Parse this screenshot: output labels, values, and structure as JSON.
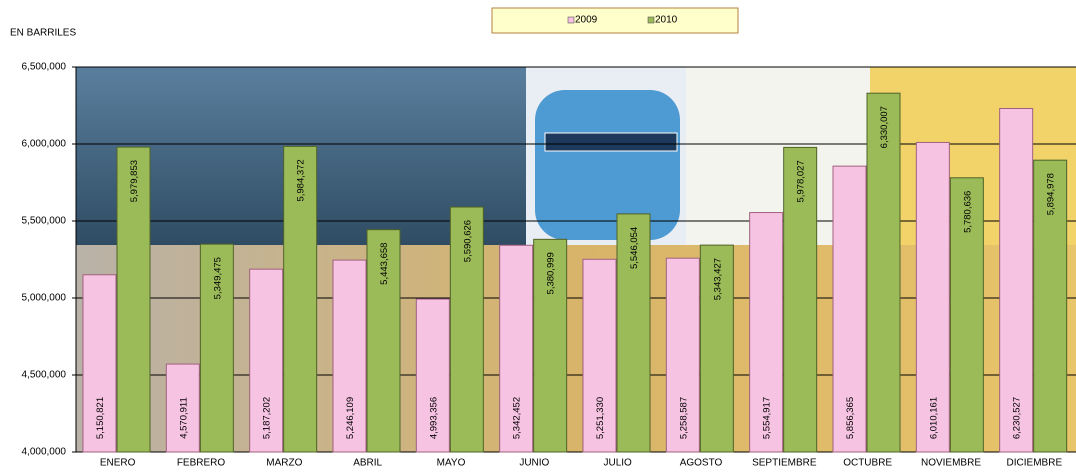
{
  "chart_data": {
    "type": "bar",
    "y_label": "EN BARRILES",
    "categories": [
      "ENERO",
      "FEBRERO",
      "MARZO",
      "ABRIL",
      "MAYO",
      "JUNIO",
      "JULIO",
      "AGOSTO",
      "SEPTIEMBRE",
      "OCTUBRE",
      "NOVIEMBRE",
      "DICIEMBRE"
    ],
    "series": [
      {
        "name": "2009",
        "color": "#f7c3e3",
        "values": [
          5150821,
          4570911,
          5187202,
          5246109,
          4993356,
          5342452,
          5251330,
          5258587,
          5554917,
          5856365,
          6010161,
          6230527
        ],
        "value_labels": [
          "5,150,821",
          "4,570,911",
          "5,187,202",
          "5,246,109",
          "4,993,356",
          "5,342,452",
          "5,251,330",
          "5,258,587",
          "5,554,917",
          "5,856,365",
          "6,010,161",
          "6,230,527"
        ]
      },
      {
        "name": "2010",
        "color": "#9bbb59",
        "values": [
          5979853,
          5349475,
          5984372,
          5443658,
          5590626,
          5380999,
          5546054,
          5343427,
          5978027,
          6330007,
          5780636,
          5894978
        ],
        "value_labels": [
          "5,979,853",
          "5,349,475",
          "5,984,372",
          "5,443,658",
          "5,590,626",
          "5,380,999",
          "5,546,054",
          "5,343,427",
          "5,978,027",
          "6,330,007",
          "5,780,636",
          "5,894,978"
        ]
      }
    ],
    "ylim": [
      4000000,
      6500000
    ],
    "yticks": [
      {
        "value": 4000000,
        "label": "4,000,000"
      },
      {
        "value": 4500000,
        "label": "4,500,000"
      },
      {
        "value": 5000000,
        "label": "5,000,000"
      },
      {
        "value": 5500000,
        "label": "5,500,000"
      },
      {
        "value": 6000000,
        "label": "6,000,000"
      },
      {
        "value": 6500000,
        "label": "6,500,000"
      }
    ],
    "grid": true,
    "legend": "top"
  }
}
